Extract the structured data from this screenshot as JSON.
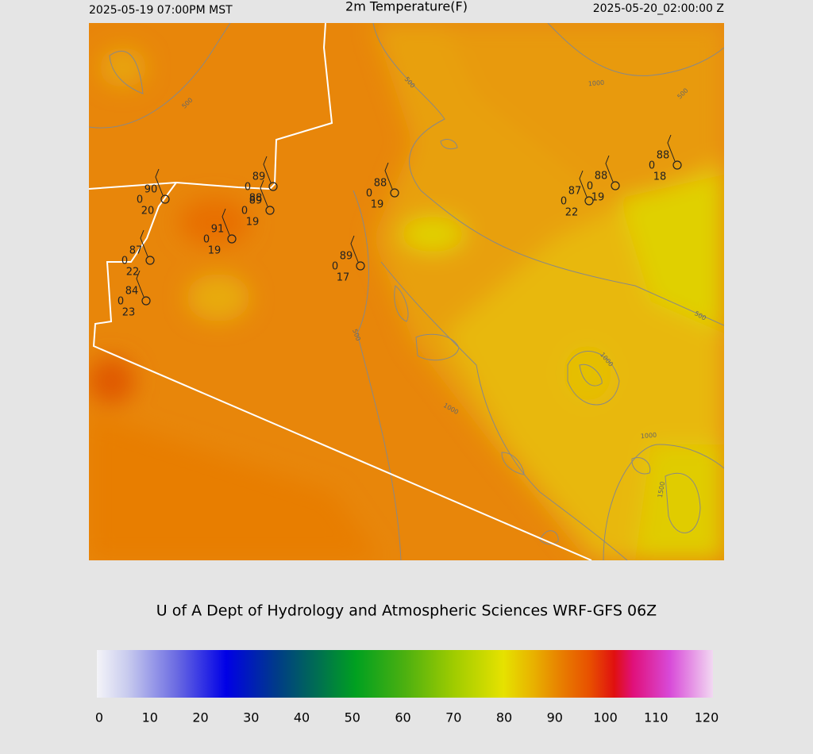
{
  "header": {
    "valid_local": "2025-05-19 07:00PM MST",
    "title": "2m Temperature(F)",
    "valid_utc": "2025-05-20_02:00:00 Z"
  },
  "credit": "U of A Dept of Hydrology and Atmospheric Sciences WRF-GFS 06Z",
  "stations": [
    {
      "temperature": 90,
      "center": 0,
      "dewpoint": 20
    },
    {
      "temperature": 89,
      "center": 0,
      "dewpoint": 88
    },
    {
      "temperature": 89,
      "center": 0,
      "dewpoint": 19
    },
    {
      "temperature": 91,
      "center": 0,
      "dewpoint": 19
    },
    {
      "temperature": 87,
      "center": 0,
      "dewpoint": 22
    },
    {
      "temperature": 84,
      "center": 0,
      "dewpoint": 23
    },
    {
      "temperature": 89,
      "center": 0,
      "dewpoint": 17
    },
    {
      "temperature": 88,
      "center": 0,
      "dewpoint": 19
    },
    {
      "temperature": 87,
      "center": 0,
      "dewpoint": 22
    },
    {
      "temperature": 88,
      "center": 0,
      "dewpoint": 19
    },
    {
      "temperature": 88,
      "center": 0,
      "dewpoint": 18
    }
  ],
  "contour_labels": [
    500,
    500,
    500,
    500,
    500,
    1000,
    1000,
    1000,
    1000,
    1500
  ],
  "colorbar": {
    "lim": [
      0,
      120
    ],
    "ticks": [
      0,
      10,
      20,
      30,
      40,
      50,
      60,
      70,
      80,
      90,
      100,
      110,
      120
    ]
  }
}
